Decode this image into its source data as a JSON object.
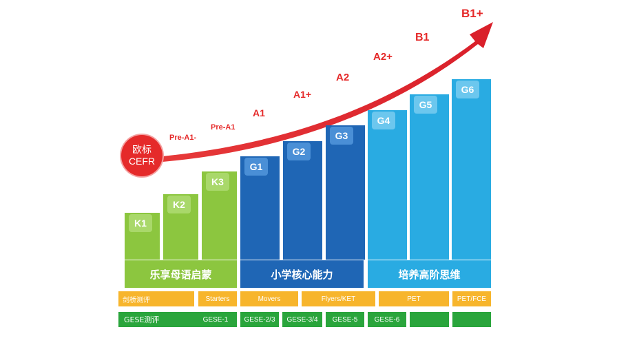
{
  "cefr_badge": {
    "line1": "欧标",
    "line2": "CEFR"
  },
  "cefr_levels": [
    "Pre-A1-",
    "Pre-A1",
    "A1",
    "A1+",
    "A2",
    "A2+",
    "B1",
    "B1+"
  ],
  "bars": [
    {
      "label": "K1",
      "group": "green"
    },
    {
      "label": "K2",
      "group": "green"
    },
    {
      "label": "K3",
      "group": "green"
    },
    {
      "label": "G1",
      "group": "darkblue"
    },
    {
      "label": "G2",
      "group": "darkblue"
    },
    {
      "label": "G3",
      "group": "darkblue"
    },
    {
      "label": "G4",
      "group": "lightblue"
    },
    {
      "label": "G5",
      "group": "lightblue"
    },
    {
      "label": "G6",
      "group": "lightblue"
    }
  ],
  "bands": [
    {
      "label": "乐享母语启蒙"
    },
    {
      "label": "小学核心能力"
    },
    {
      "label": "培养高阶思维"
    }
  ],
  "cambridge_row": {
    "label": "剑桥测评",
    "cells": [
      "Starters",
      "Movers",
      "Flyers/KET",
      "PET",
      "PET/FCE"
    ]
  },
  "gese_row": {
    "label": "GESE测评",
    "cells": [
      "GESE-1",
      "GESE-2/3",
      "GESE-3/4",
      "GESE-5",
      "GESE-6",
      "",
      ""
    ]
  },
  "colors": {
    "green": "#8cc63f",
    "darkblue": "#1f66b5",
    "lightblue": "#29abe2",
    "orange": "#f7b52c",
    "deepgreen": "#2aa53c",
    "red": "#e52a2a"
  }
}
